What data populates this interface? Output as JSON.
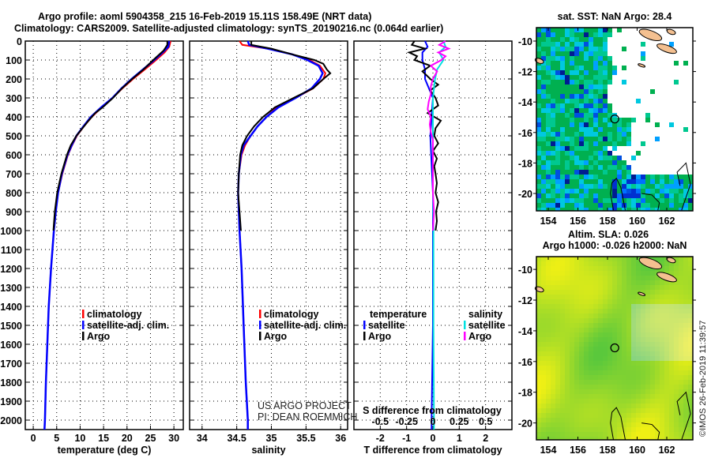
{
  "header": {
    "title_line1": "Argo profile: aoml 5904358_215 16-Feb-2019 15.11S 158.49E (NRT data)",
    "title_line2": "Climatology: CARS2009. Satellite-adjusted climatology: synTS_20190216.nc (0.064d earlier)"
  },
  "credits": {
    "line1": "US ARGO PROJECT",
    "line2": "PI: DEAN ROEMMICH"
  },
  "watermark": "©IMOS 26-Feb-2019 11:39:57",
  "colors": {
    "climatology": "#ff0000",
    "satellite": "#0000ff",
    "argo": "#000000",
    "sal_satellite": "#00e0e0",
    "sal_argo": "#ff00ff"
  },
  "chart_data": [
    {
      "type": "line",
      "id": "temperature",
      "xlabel": "temperature (deg C)",
      "ylabel": "",
      "xlim": [
        -1.7,
        32
      ],
      "ylim": [
        2050,
        0
      ],
      "xticks": [
        "0",
        "5",
        "10",
        "15",
        "20",
        "25",
        "30"
      ],
      "xtick_values": [
        0,
        5,
        10,
        15,
        20,
        25,
        30
      ],
      "yticks": [
        "0",
        "100",
        "200",
        "300",
        "400",
        "500",
        "600",
        "700",
        "800",
        "900",
        "1000",
        "1100",
        "1200",
        "1300",
        "1400",
        "1500",
        "1600",
        "1700",
        "1800",
        "1900",
        "2000"
      ],
      "grid": true,
      "legend": [
        "climatology",
        "satellite-adj. clim.",
        "Argo"
      ],
      "legend_position": "lower-right",
      "series": [
        {
          "name": "climatology",
          "depth": [
            0,
            30,
            60,
            100,
            150,
            200,
            250,
            300,
            350,
            400,
            450,
            500,
            550,
            600,
            700,
            800,
            900,
            1000,
            1200,
            1400,
            1600,
            1800,
            2000,
            2050
          ],
          "values": [
            29.3,
            29.0,
            28.0,
            26.2,
            23.8,
            21.3,
            19.0,
            16.9,
            14.6,
            12.5,
            10.8,
            9.3,
            8.3,
            7.4,
            6.2,
            5.3,
            4.8,
            4.4,
            3.8,
            3.3,
            3.0,
            2.7,
            2.5,
            2.4
          ]
        },
        {
          "name": "satellite-adj. clim.",
          "depth": [
            0,
            30,
            60,
            100,
            150,
            200,
            250,
            300,
            350,
            400,
            450,
            500,
            550,
            600,
            700,
            800,
            900,
            1000,
            1200,
            1400,
            1600,
            1800,
            2000,
            2050
          ],
          "values": [
            29.0,
            28.8,
            27.6,
            25.8,
            23.4,
            21.0,
            18.8,
            16.9,
            14.5,
            12.3,
            10.7,
            9.2,
            8.2,
            7.3,
            6.1,
            5.3,
            4.8,
            4.4,
            3.8,
            3.3,
            3.0,
            2.7,
            2.5,
            2.4
          ]
        },
        {
          "name": "Argo",
          "depth": [
            0,
            20,
            50,
            100,
            150,
            200,
            250,
            300,
            350,
            380,
            420,
            500,
            550,
            600,
            700,
            800,
            900,
            1000
          ],
          "values": [
            28.6,
            28.6,
            27.8,
            25.6,
            23.5,
            21.1,
            18.9,
            17.0,
            14.8,
            13.2,
            11.8,
            9.2,
            8.0,
            7.2,
            6.0,
            5.1,
            4.6,
            4.3
          ]
        }
      ]
    },
    {
      "type": "line",
      "id": "salinity",
      "xlabel": "salinity",
      "xlim": [
        33.82,
        36.1
      ],
      "ylim": [
        2050,
        0
      ],
      "xticks": [
        "34",
        "34.5",
        "35",
        "35.5",
        "36"
      ],
      "xtick_values": [
        34,
        34.5,
        35,
        35.5,
        36
      ],
      "grid": true,
      "legend": [
        "climatology",
        "satellite-adj. clim.",
        "Argo"
      ],
      "legend_position": "lower-right",
      "series": [
        {
          "name": "climatology",
          "depth": [
            0,
            20,
            40,
            70,
            100,
            130,
            170,
            200,
            250,
            300,
            350,
            400,
            450,
            500,
            550,
            600,
            700,
            800,
            1000,
            1200,
            1500,
            1800,
            2000,
            2050
          ],
          "values": [
            34.54,
            34.58,
            34.95,
            35.3,
            35.55,
            35.7,
            35.78,
            35.75,
            35.6,
            35.35,
            35.08,
            34.93,
            34.8,
            34.7,
            34.62,
            34.57,
            34.53,
            34.52,
            34.54,
            34.57,
            34.6,
            34.63,
            34.66,
            34.66
          ]
        },
        {
          "name": "satellite-adj. clim.",
          "depth": [
            0,
            20,
            40,
            70,
            100,
            130,
            170,
            200,
            250,
            300,
            350,
            400,
            450,
            500,
            550,
            600,
            700,
            800,
            1000,
            1200,
            1500,
            1800,
            2000,
            2050
          ],
          "values": [
            34.66,
            34.68,
            34.95,
            35.3,
            35.52,
            35.68,
            35.74,
            35.7,
            35.58,
            35.35,
            35.1,
            34.93,
            34.8,
            34.7,
            34.6,
            34.56,
            34.53,
            34.52,
            34.54,
            34.57,
            34.6,
            34.63,
            34.66,
            34.66
          ]
        },
        {
          "name": "Argo",
          "depth": [
            0,
            20,
            40,
            70,
            100,
            120,
            150,
            170,
            200,
            250,
            300,
            350,
            380,
            400,
            450,
            500,
            550,
            600,
            700,
            800,
            900,
            1000
          ],
          "values": [
            34.71,
            34.71,
            35.0,
            35.3,
            35.62,
            35.75,
            35.8,
            35.85,
            35.75,
            35.6,
            35.32,
            35.05,
            34.95,
            34.88,
            34.75,
            34.65,
            34.58,
            34.55,
            34.53,
            34.52,
            34.54,
            34.56
          ]
        }
      ]
    },
    {
      "type": "line",
      "id": "differences",
      "xlabel": "T difference from climatology",
      "xlabel_s": "S difference from climatology",
      "xlim": [
        -3,
        3
      ],
      "xlim_s": [
        -0.75,
        0.75
      ],
      "ylim": [
        2050,
        0
      ],
      "xticks": [
        "-2",
        "-1",
        "0",
        "1",
        "2"
      ],
      "xtick_values": [
        -2,
        -1,
        0,
        1,
        2
      ],
      "xticks_s": [
        "-0.5",
        "-0.25",
        "0",
        "0.25",
        "0.5"
      ],
      "xtick_values_s": [
        -0.5,
        -0.25,
        0,
        0.25,
        0.5
      ],
      "grid": true,
      "legend_temperature_title": "temperature",
      "legend_salinity_title": "salinity",
      "legend_temperature": [
        "satellite",
        "Argo"
      ],
      "legend_salinity": [
        "satellite",
        "Argo"
      ],
      "series": [
        {
          "name": "T satellite",
          "axis": "T",
          "depth": [
            0,
            30,
            60,
            100,
            150,
            200,
            300,
            500,
            800,
            1000,
            1500,
            2000,
            2050
          ],
          "values": [
            -0.3,
            -0.2,
            -0.4,
            -0.4,
            -0.3,
            -0.3,
            0,
            -0.1,
            0,
            0,
            0,
            -0.05,
            -0.05
          ]
        },
        {
          "name": "T Argo",
          "axis": "T",
          "depth": [
            0,
            20,
            40,
            60,
            80,
            100,
            130,
            160,
            200,
            230,
            260,
            300,
            340,
            380,
            420,
            460,
            500,
            540,
            580,
            620,
            660,
            700,
            750,
            800,
            850,
            900,
            950,
            1000
          ],
          "values": [
            -0.7,
            -0.8,
            -0.3,
            -0.9,
            -0.6,
            -0.7,
            -0.1,
            -0.4,
            -0.1,
            0.2,
            -0.1,
            0.1,
            0.2,
            -0.2,
            0.3,
            0.1,
            0.05,
            0.2,
            0.0,
            0.15,
            0.05,
            0.1,
            0.15,
            0.1,
            0.2,
            0.12,
            0.15,
            0.1
          ]
        },
        {
          "name": "S satellite",
          "axis": "S",
          "depth": [
            0,
            30,
            60,
            100,
            150,
            200,
            300,
            500,
            800,
            1000,
            1500,
            2000,
            2050
          ],
          "values": [
            0.1,
            0.12,
            0.06,
            0.1,
            0.04,
            0.02,
            0,
            0,
            0,
            0.005,
            0.005,
            0.01,
            0.01
          ]
        },
        {
          "name": "S Argo",
          "axis": "S",
          "depth": [
            0,
            20,
            40,
            60,
            80,
            100,
            130,
            160,
            200,
            240,
            280,
            320,
            360,
            400,
            440,
            480,
            520,
            560,
            600,
            700,
            800,
            900,
            1000
          ],
          "values": [
            0.12,
            0.06,
            0.15,
            0.05,
            0.12,
            0.08,
            -0.02,
            0.04,
            0.0,
            -0.02,
            -0.02,
            -0.04,
            -0.05,
            -0.02,
            -0.03,
            -0.02,
            0.0,
            0.0,
            0.0,
            0.0,
            0.0,
            0.01,
            0.0
          ]
        }
      ]
    },
    {
      "type": "heatmap",
      "id": "sst_map",
      "title": "sat. SST: NaN Argo: 28.4",
      "xlim": [
        153.2,
        163.76
      ],
      "ylim": [
        -21.14,
        -9.12
      ],
      "xticks": [
        "154",
        "156",
        "158",
        "160",
        "162"
      ],
      "xtick_values": [
        154,
        156,
        158,
        160,
        162
      ],
      "yticks": [
        "-10",
        "-12",
        "-14",
        "-16",
        "-18",
        "-20"
      ],
      "ytick_values": [
        -10,
        -12,
        -14,
        -16,
        -18,
        -20
      ],
      "argo_position": {
        "lon": 158.49,
        "lat": -15.11
      }
    },
    {
      "type": "heatmap",
      "id": "sla_map",
      "title_line1": "Altim. SLA: 0.026",
      "title_line2": "Argo h1000: -0.026 h2000: NaN",
      "xlim": [
        153.2,
        163.76
      ],
      "ylim": [
        -21.1,
        -9.17
      ],
      "xticks": [
        "154",
        "156",
        "158",
        "160",
        "162"
      ],
      "xtick_values": [
        154,
        156,
        158,
        160,
        162
      ],
      "yticks": [
        "-10",
        "-12",
        "-14",
        "-16",
        "-18",
        "-20"
      ],
      "ytick_values": [
        -10,
        -12,
        -14,
        -16,
        -18,
        -20
      ],
      "argo_position": {
        "lon": 158.49,
        "lat": -15.11
      }
    }
  ]
}
